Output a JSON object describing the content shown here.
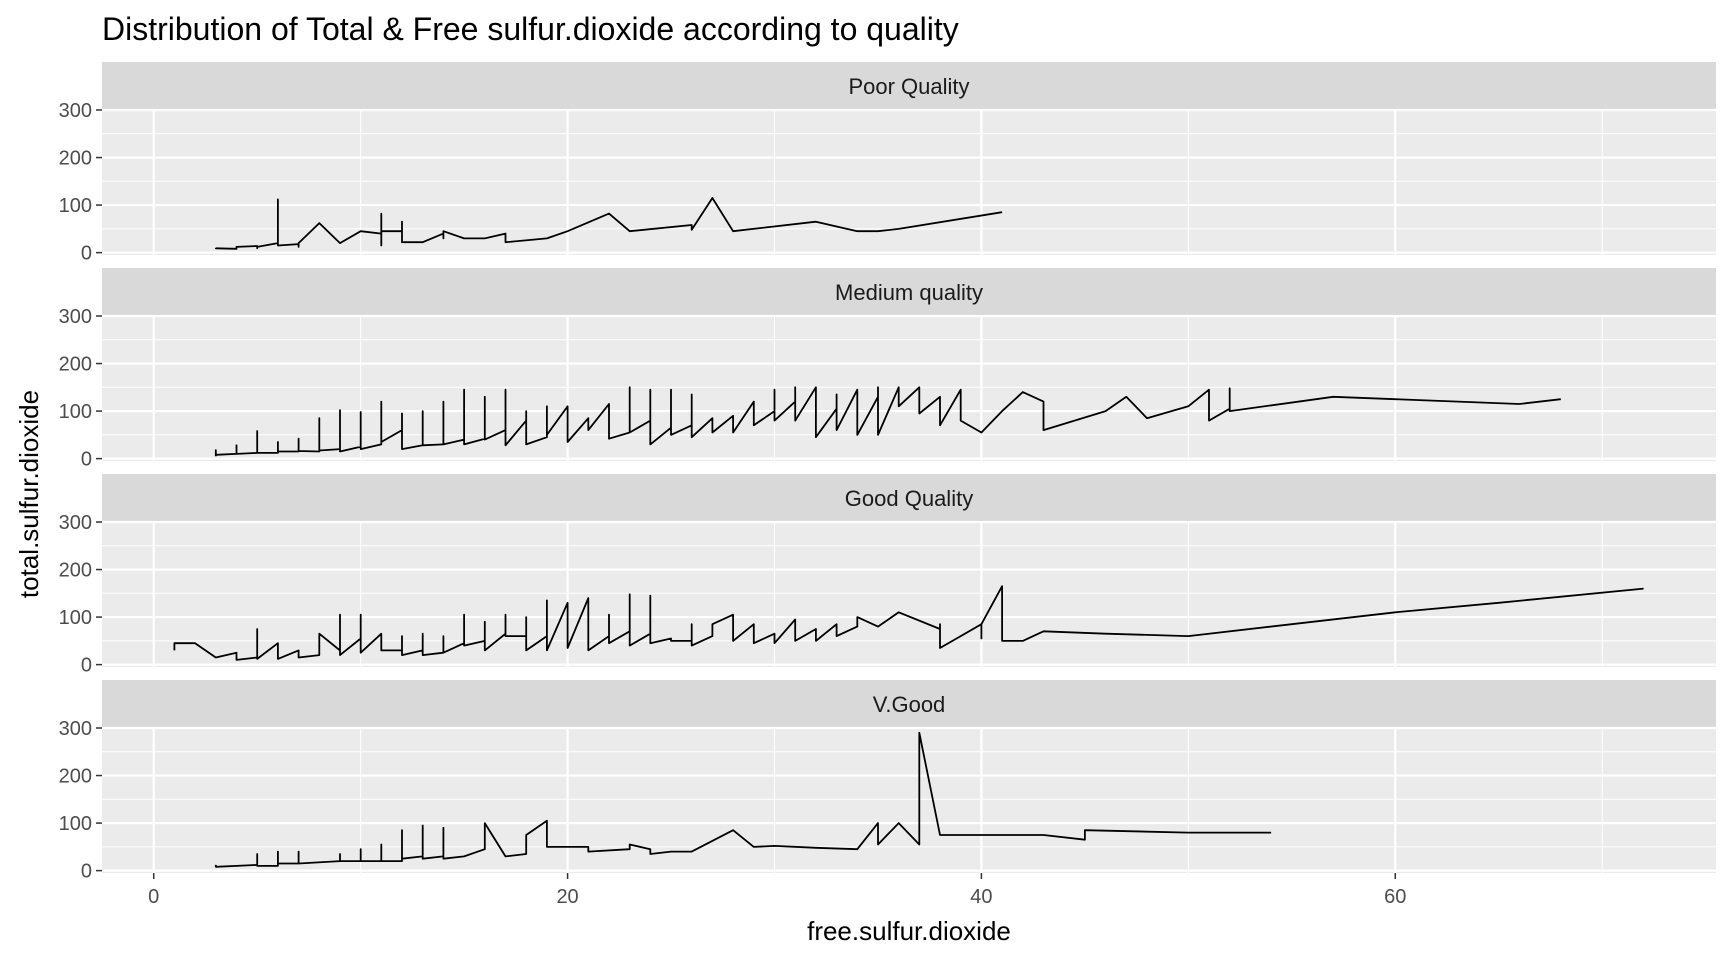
{
  "chart_data": {
    "type": "line",
    "title": "Distribution of Total & Free sulfur.dioxide according to quality",
    "xlabel": "free.sulfur.dioxide",
    "ylabel": "total.sulfur.dioxide",
    "xlim": [
      -2.5,
      75.5
    ],
    "ylim": [
      -5,
      300
    ],
    "x_ticks": [
      0,
      20,
      40,
      60
    ],
    "y_ticks": [
      0,
      100,
      200,
      300
    ],
    "grid": true,
    "colors": {
      "panel_background": "#ebebeb",
      "strip_background": "#d9d9d9",
      "grid_line": "#ffffff",
      "series_line": "#000000",
      "tick_mark": "#333333"
    },
    "panels": [
      {
        "label": "Poor Quality",
        "points": [
          [
            3,
            10
          ],
          [
            3,
            9
          ],
          [
            4,
            8
          ],
          [
            4,
            10
          ],
          [
            4,
            12
          ],
          [
            5,
            14
          ],
          [
            5,
            9
          ],
          [
            5,
            12
          ],
          [
            6,
            20
          ],
          [
            6,
            28
          ],
          [
            6,
            112
          ],
          [
            6,
            15
          ],
          [
            7,
            18
          ],
          [
            7,
            12
          ],
          [
            7,
            20
          ],
          [
            8,
            62
          ],
          [
            9,
            20
          ],
          [
            10,
            45
          ],
          [
            11,
            40
          ],
          [
            11,
            82
          ],
          [
            11,
            15
          ],
          [
            11,
            45
          ],
          [
            12,
            45
          ],
          [
            12,
            65
          ],
          [
            12,
            22
          ],
          [
            13,
            22
          ],
          [
            14,
            40
          ],
          [
            14,
            30
          ],
          [
            14,
            45
          ],
          [
            15,
            30
          ],
          [
            16,
            30
          ],
          [
            17,
            40
          ],
          [
            17,
            22
          ],
          [
            19,
            30
          ],
          [
            20,
            45
          ],
          [
            22,
            82
          ],
          [
            23,
            45
          ],
          [
            26,
            58
          ],
          [
            26,
            48
          ],
          [
            27,
            115
          ],
          [
            28,
            45
          ],
          [
            32,
            65
          ],
          [
            34,
            45
          ],
          [
            35,
            45
          ],
          [
            36,
            50
          ],
          [
            41,
            85
          ]
        ]
      },
      {
        "label": "Medium quality",
        "points": [
          [
            3,
            5
          ],
          [
            3,
            18
          ],
          [
            3,
            8
          ],
          [
            4,
            10
          ],
          [
            4,
            28
          ],
          [
            4,
            10
          ],
          [
            5,
            12
          ],
          [
            5,
            58
          ],
          [
            5,
            12
          ],
          [
            6,
            12
          ],
          [
            6,
            35
          ],
          [
            6,
            15
          ],
          [
            7,
            15
          ],
          [
            7,
            42
          ],
          [
            7,
            16
          ],
          [
            8,
            15
          ],
          [
            8,
            85
          ],
          [
            8,
            17
          ],
          [
            9,
            20
          ],
          [
            9,
            102
          ],
          [
            9,
            15
          ],
          [
            10,
            25
          ],
          [
            10,
            98
          ],
          [
            10,
            20
          ],
          [
            11,
            30
          ],
          [
            11,
            120
          ],
          [
            11,
            35
          ],
          [
            12,
            60
          ],
          [
            12,
            95
          ],
          [
            12,
            20
          ],
          [
            13,
            28
          ],
          [
            13,
            100
          ],
          [
            13,
            28
          ],
          [
            14,
            30
          ],
          [
            14,
            120
          ],
          [
            14,
            30
          ],
          [
            15,
            40
          ],
          [
            15,
            145
          ],
          [
            15,
            30
          ],
          [
            16,
            42
          ],
          [
            16,
            130
          ],
          [
            16,
            40
          ],
          [
            17,
            60
          ],
          [
            17,
            145
          ],
          [
            17,
            28
          ],
          [
            18,
            80
          ],
          [
            18,
            100
          ],
          [
            18,
            30
          ],
          [
            19,
            45
          ],
          [
            19,
            110
          ],
          [
            19,
            50
          ],
          [
            20,
            110
          ],
          [
            20,
            35
          ],
          [
            21,
            85
          ],
          [
            21,
            60
          ],
          [
            22,
            115
          ],
          [
            22,
            42
          ],
          [
            23,
            55
          ],
          [
            23,
            150
          ],
          [
            23,
            55
          ],
          [
            24,
            80
          ],
          [
            24,
            145
          ],
          [
            24,
            30
          ],
          [
            25,
            65
          ],
          [
            25,
            145
          ],
          [
            25,
            50
          ],
          [
            26,
            70
          ],
          [
            26,
            135
          ],
          [
            26,
            45
          ],
          [
            27,
            85
          ],
          [
            27,
            55
          ],
          [
            28,
            90
          ],
          [
            28,
            55
          ],
          [
            29,
            120
          ],
          [
            29,
            70
          ],
          [
            30,
            100
          ],
          [
            30,
            145
          ],
          [
            30,
            80
          ],
          [
            31,
            120
          ],
          [
            31,
            150
          ],
          [
            31,
            80
          ],
          [
            32,
            150
          ],
          [
            32,
            45
          ],
          [
            33,
            105
          ],
          [
            33,
            135
          ],
          [
            33,
            60
          ],
          [
            34,
            145
          ],
          [
            34,
            50
          ],
          [
            35,
            130
          ],
          [
            35,
            150
          ],
          [
            35,
            50
          ],
          [
            36,
            150
          ],
          [
            36,
            110
          ],
          [
            37,
            150
          ],
          [
            37,
            95
          ],
          [
            38,
            130
          ],
          [
            38,
            70
          ],
          [
            39,
            145
          ],
          [
            39,
            80
          ],
          [
            40,
            55
          ],
          [
            41,
            100
          ],
          [
            42,
            140
          ],
          [
            43,
            120
          ],
          [
            43,
            60
          ],
          [
            46,
            100
          ],
          [
            47,
            130
          ],
          [
            48,
            85
          ],
          [
            50,
            110
          ],
          [
            51,
            145
          ],
          [
            51,
            80
          ],
          [
            52,
            105
          ],
          [
            52,
            148
          ],
          [
            52,
            100
          ],
          [
            57,
            130
          ],
          [
            66,
            115
          ],
          [
            68,
            125
          ]
        ]
      },
      {
        "label": "Good Quality",
        "points": [
          [
            1,
            30
          ],
          [
            1,
            45
          ],
          [
            2,
            45
          ],
          [
            3,
            15
          ],
          [
            4,
            25
          ],
          [
            4,
            10
          ],
          [
            5,
            15
          ],
          [
            5,
            75
          ],
          [
            5,
            12
          ],
          [
            6,
            45
          ],
          [
            6,
            12
          ],
          [
            7,
            30
          ],
          [
            7,
            15
          ],
          [
            8,
            20
          ],
          [
            8,
            65
          ],
          [
            9,
            30
          ],
          [
            9,
            105
          ],
          [
            9,
            20
          ],
          [
            10,
            55
          ],
          [
            10,
            105
          ],
          [
            10,
            25
          ],
          [
            11,
            65
          ],
          [
            11,
            30
          ],
          [
            12,
            30
          ],
          [
            12,
            60
          ],
          [
            12,
            20
          ],
          [
            13,
            30
          ],
          [
            13,
            65
          ],
          [
            13,
            20
          ],
          [
            14,
            25
          ],
          [
            14,
            60
          ],
          [
            14,
            25
          ],
          [
            15,
            45
          ],
          [
            15,
            105
          ],
          [
            15,
            40
          ],
          [
            16,
            50
          ],
          [
            16,
            90
          ],
          [
            16,
            30
          ],
          [
            17,
            65
          ],
          [
            17,
            105
          ],
          [
            17,
            60
          ],
          [
            18,
            60
          ],
          [
            18,
            100
          ],
          [
            18,
            30
          ],
          [
            19,
            60
          ],
          [
            19,
            135
          ],
          [
            19,
            30
          ],
          [
            20,
            130
          ],
          [
            20,
            35
          ],
          [
            21,
            140
          ],
          [
            21,
            30
          ],
          [
            22,
            60
          ],
          [
            22,
            105
          ],
          [
            22,
            45
          ],
          [
            23,
            70
          ],
          [
            23,
            148
          ],
          [
            23,
            40
          ],
          [
            24,
            65
          ],
          [
            24,
            145
          ],
          [
            24,
            45
          ],
          [
            25,
            55
          ],
          [
            25,
            50
          ],
          [
            26,
            50
          ],
          [
            26,
            85
          ],
          [
            26,
            40
          ],
          [
            27,
            60
          ],
          [
            27,
            85
          ],
          [
            28,
            105
          ],
          [
            28,
            50
          ],
          [
            29,
            85
          ],
          [
            29,
            45
          ],
          [
            30,
            65
          ],
          [
            30,
            45
          ],
          [
            31,
            95
          ],
          [
            31,
            50
          ],
          [
            32,
            75
          ],
          [
            32,
            50
          ],
          [
            33,
            85
          ],
          [
            33,
            60
          ],
          [
            34,
            80
          ],
          [
            34,
            100
          ],
          [
            35,
            80
          ],
          [
            36,
            110
          ],
          [
            38,
            75
          ],
          [
            38,
            85
          ],
          [
            38,
            35
          ],
          [
            39,
            60
          ],
          [
            40,
            85
          ],
          [
            40,
            55
          ],
          [
            40,
            85
          ],
          [
            41,
            165
          ],
          [
            41,
            50
          ],
          [
            42,
            50
          ],
          [
            43,
            70
          ],
          [
            46,
            65
          ],
          [
            50,
            60
          ],
          [
            55,
            85
          ],
          [
            60,
            110
          ],
          [
            65,
            130
          ],
          [
            72,
            160
          ]
        ]
      },
      {
        "label": "V.Good",
        "points": [
          [
            3,
            12
          ],
          [
            3,
            8
          ],
          [
            4,
            10
          ],
          [
            5,
            12
          ],
          [
            5,
            35
          ],
          [
            5,
            10
          ],
          [
            6,
            10
          ],
          [
            6,
            40
          ],
          [
            6,
            15
          ],
          [
            7,
            15
          ],
          [
            7,
            40
          ],
          [
            7,
            15
          ],
          [
            9,
            20
          ],
          [
            9,
            35
          ],
          [
            9,
            20
          ],
          [
            10,
            20
          ],
          [
            10,
            45
          ],
          [
            10,
            20
          ],
          [
            11,
            20
          ],
          [
            11,
            55
          ],
          [
            11,
            20
          ],
          [
            12,
            20
          ],
          [
            12,
            85
          ],
          [
            12,
            25
          ],
          [
            13,
            30
          ],
          [
            13,
            95
          ],
          [
            13,
            25
          ],
          [
            14,
            30
          ],
          [
            14,
            90
          ],
          [
            14,
            25
          ],
          [
            15,
            30
          ],
          [
            15,
            30
          ],
          [
            16,
            45
          ],
          [
            16,
            100
          ],
          [
            17,
            30
          ],
          [
            18,
            35
          ],
          [
            18,
            75
          ],
          [
            19,
            105
          ],
          [
            19,
            50
          ],
          [
            21,
            50
          ],
          [
            21,
            40
          ],
          [
            23,
            45
          ],
          [
            23,
            55
          ],
          [
            24,
            45
          ],
          [
            24,
            35
          ],
          [
            25,
            40
          ],
          [
            26,
            40
          ],
          [
            28,
            85
          ],
          [
            29,
            50
          ],
          [
            30,
            52
          ],
          [
            32,
            48
          ],
          [
            34,
            45
          ],
          [
            35,
            100
          ],
          [
            35,
            55
          ],
          [
            36,
            100
          ],
          [
            37,
            55
          ],
          [
            37,
            290
          ],
          [
            38,
            75
          ],
          [
            38,
            75
          ],
          [
            43,
            75
          ],
          [
            45,
            65
          ],
          [
            45,
            85
          ],
          [
            50,
            80
          ],
          [
            54,
            80
          ]
        ]
      }
    ]
  }
}
